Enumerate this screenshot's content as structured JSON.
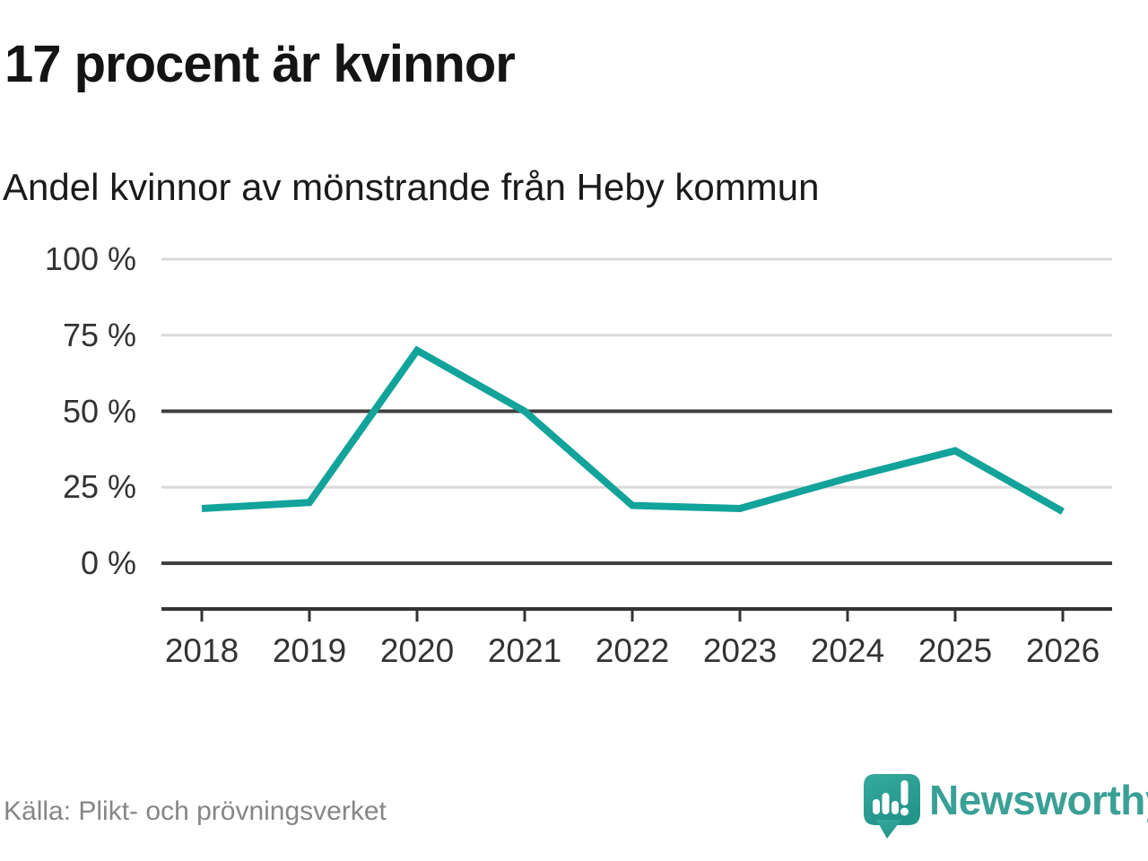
{
  "header": {
    "title": "17 procent är kvinnor",
    "subtitle": "Andel kvinnor av mönstrande från Heby kommun"
  },
  "footer": {
    "source": "Källa: Plikt- och prövningsverket",
    "brand": {
      "name": "Newsworthy",
      "icon": "speech-bubble-bar-chart-icon"
    }
  },
  "colors": {
    "line": "#12a39a",
    "grid_light": "#d9d9d9",
    "grid_dark": "#404040",
    "axis": "#333333",
    "tick_text": "#333333",
    "title_text": "#141414",
    "source_text": "#868686",
    "brand_teal": "#3aa096",
    "bubble_top": "#36aa9f",
    "bubble_bottom": "#23948a"
  },
  "chart_data": {
    "type": "line",
    "title": "17 procent är kvinnor",
    "subtitle": "Andel kvinnor av mönstrande från Heby kommun",
    "x": [
      2018,
      2019,
      2020,
      2021,
      2022,
      2023,
      2024,
      2025,
      2026
    ],
    "xtick_labels": [
      "2018",
      "2019",
      "2020",
      "2021",
      "2022",
      "2023",
      "2024",
      "2025",
      "2026"
    ],
    "series": [
      {
        "name": "Andel kvinnor av mönstrande",
        "values": [
          18,
          20,
          70,
          50,
          19,
          18,
          28,
          37,
          17
        ]
      }
    ],
    "unit": "%",
    "xlabel": "",
    "ylabel": "",
    "ylim": [
      0,
      100
    ],
    "yticks": [
      0,
      25,
      50,
      75,
      100
    ],
    "ytick_labels": [
      "0 %",
      "25 %",
      "50 %",
      "75 %",
      "100 %"
    ],
    "grid": "horizontal",
    "emphasized_gridlines": [
      0,
      50
    ],
    "legend": "none",
    "source": "Källa: Plikt- och prövningsverket"
  }
}
